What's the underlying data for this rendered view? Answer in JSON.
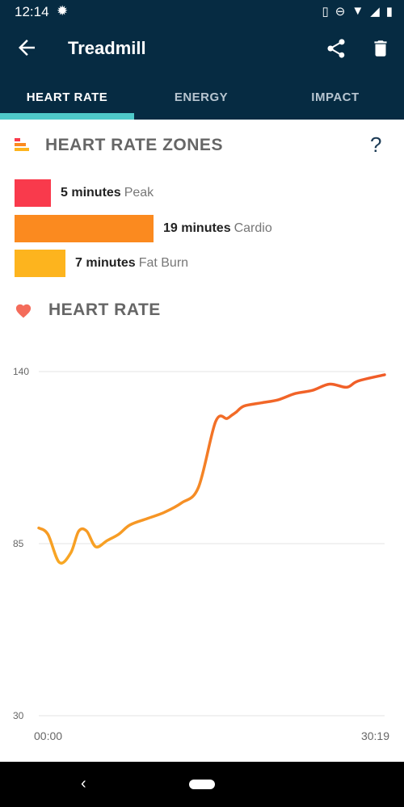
{
  "status_bar": {
    "time": "12:14"
  },
  "app_bar": {
    "title": "Treadmill"
  },
  "tabs": [
    {
      "label": "HEART RATE",
      "active": true
    },
    {
      "label": "ENERGY",
      "active": false
    },
    {
      "label": "IMPACT",
      "active": false
    }
  ],
  "zones": {
    "heading": "HEART RATE ZONES",
    "help_label": "?",
    "items": [
      {
        "value": "5 minutes",
        "name": "Peak",
        "minutes": 5,
        "color": "#f93a4c"
      },
      {
        "value": "19 minutes",
        "name": "Cardio",
        "minutes": 19,
        "color": "#fb8a1f"
      },
      {
        "value": "7 minutes",
        "name": "Fat Burn",
        "minutes": 7,
        "color": "#fdb41e"
      }
    ]
  },
  "heart_rate": {
    "heading": "HEART RATE"
  },
  "chart_data": {
    "type": "line",
    "title": "",
    "xlabel": "",
    "ylabel": "",
    "x_tick_labels": [
      "00:00",
      "30:19"
    ],
    "y_ticks": [
      140,
      85,
      30
    ],
    "ylim": [
      30,
      140
    ],
    "xlim_minutes": [
      0,
      30.32
    ],
    "grid": true,
    "gradient_colors": [
      "#f8a924",
      "#f05a28"
    ],
    "series": [
      {
        "x": [
          0,
          0.8,
          1.8,
          2.8,
          3.5,
          4.2,
          5.0,
          6.0,
          7.0,
          8.0,
          9.5,
          11.0,
          12.5,
          14.0,
          15.5,
          16.5,
          16.9,
          17.3,
          18.0,
          19.5,
          21.0,
          22.5,
          24.0,
          25.5,
          27.0,
          28.0,
          30.32
        ],
        "y": [
          90,
          88,
          79,
          82,
          89,
          89,
          84,
          86,
          88,
          91,
          93,
          95,
          98,
          103,
          124,
          125,
          126,
          127,
          129,
          130,
          131,
          133,
          134,
          136,
          135,
          137,
          139
        ]
      }
    ]
  }
}
